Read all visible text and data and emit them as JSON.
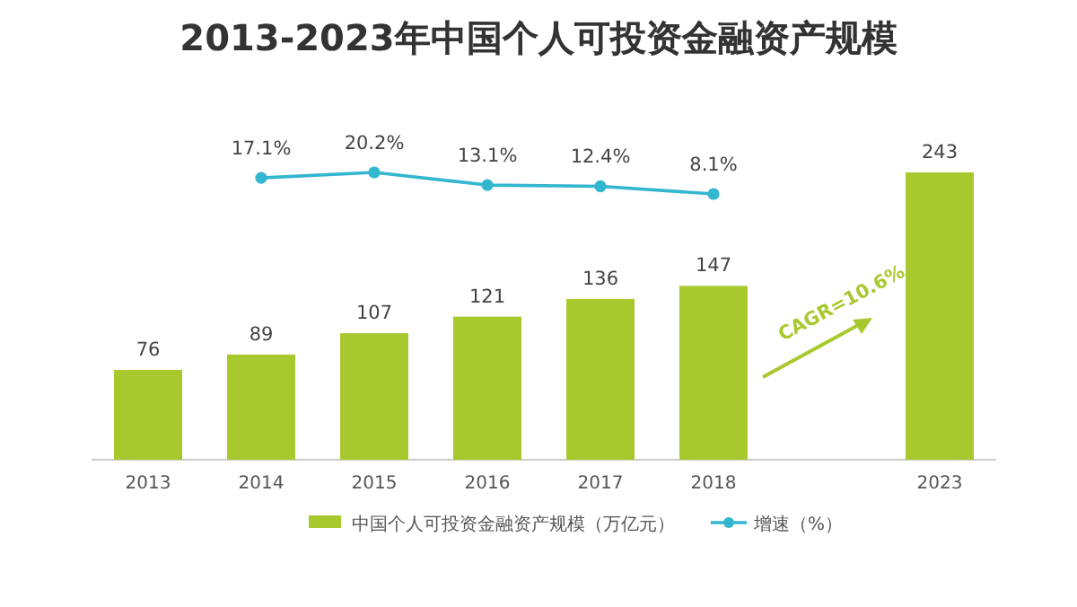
{
  "chart_data": {
    "type": "bar",
    "title": "2013-2023年中国个人可投资金融资产规模",
    "categories": [
      "2013",
      "2014",
      "2015",
      "2016",
      "2017",
      "2018",
      null,
      "2023"
    ],
    "series": [
      {
        "name": "中国个人可投资金融资产规模（万亿元）",
        "color": "#a8c92e",
        "values": [
          76,
          89,
          107,
          121,
          136,
          147,
          null,
          243
        ],
        "value_labels": [
          "76",
          "89",
          "107",
          "121",
          "136",
          "147",
          null,
          "243"
        ]
      },
      {
        "name": "增速（%）",
        "type": "line",
        "axis": "y2",
        "color": "#33b6cf",
        "marker": "circle",
        "values": [
          null,
          17.1,
          20.2,
          13.1,
          12.4,
          8.1,
          null,
          null
        ],
        "value_labels": [
          null,
          "17.1%",
          "20.2%",
          "13.1%",
          "12.4%",
          "8.1%",
          null,
          null
        ]
      }
    ],
    "annotations": [
      "CAGR=10.6%"
    ],
    "legend": "bottom"
  }
}
